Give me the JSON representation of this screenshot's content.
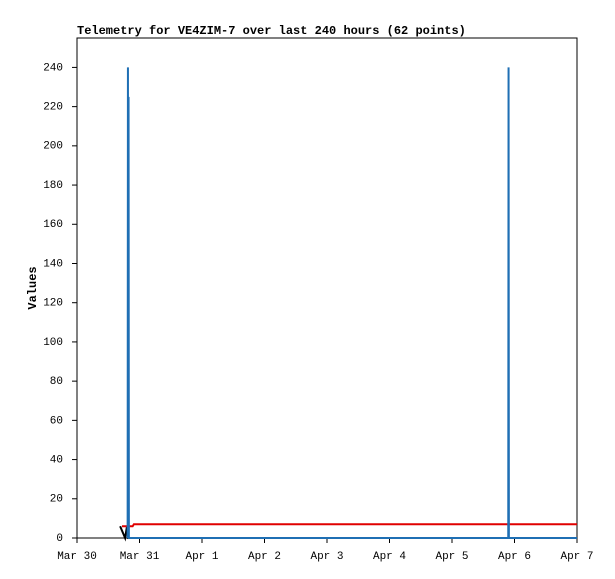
{
  "chart_data": {
    "type": "line",
    "title": "Telemetry for VE4ZIM-7 over last 240 hours (62 points)",
    "y_label": "Values",
    "xlim": [
      0,
      8
    ],
    "xticks": [
      {
        "value": 0,
        "label": "Mar 30"
      },
      {
        "value": 1,
        "label": "Mar 31"
      },
      {
        "value": 2,
        "label": "Apr 1"
      },
      {
        "value": 3,
        "label": "Apr 2"
      },
      {
        "value": 4,
        "label": "Apr 3"
      },
      {
        "value": 5,
        "label": "Apr 4"
      },
      {
        "value": 6,
        "label": "Apr 5"
      },
      {
        "value": 7,
        "label": "Apr 6"
      },
      {
        "value": 8,
        "label": "Apr 7"
      }
    ],
    "ylim": [
      0,
      255
    ],
    "yticks": [
      0,
      20,
      40,
      60,
      80,
      100,
      120,
      140,
      160,
      180,
      200,
      220,
      240
    ],
    "series": [
      {
        "color": "#000000",
        "x": [
          0.69,
          0.77,
          0.8,
          0.82,
          8
        ],
        "values": [
          6,
          0,
          6,
          0,
          0
        ]
      },
      {
        "color": "#e00000",
        "x": [
          0.72,
          0.89,
          0.91,
          8
        ],
        "values": [
          6,
          6,
          7,
          7
        ]
      },
      {
        "color": "#1f6fb4",
        "x": [
          0.81,
          0.815,
          0.82,
          0.825,
          0.83,
          6.9,
          6.905,
          6.91,
          8
        ],
        "values": [
          0,
          240,
          0,
          225,
          0,
          0,
          240,
          0,
          0
        ]
      }
    ]
  }
}
